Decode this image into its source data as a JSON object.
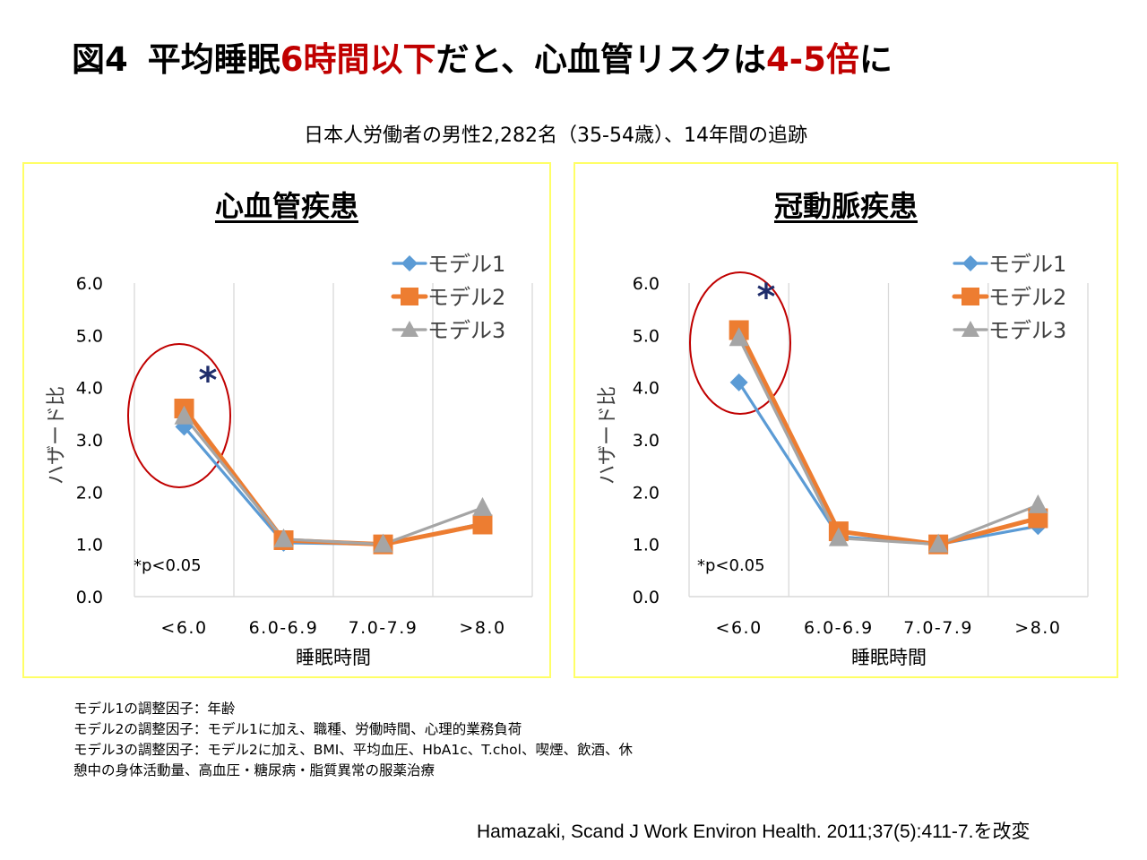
{
  "title": {
    "prefix": "図4",
    "part1": "平均睡眠",
    "part2_red": "6時間以下",
    "part3": "だと、心血管リスクは",
    "part4_red": "4-5倍",
    "part5": "に"
  },
  "subtitle": "日本人労働者の男性2,282名（35-54歳）、14年間の追跡",
  "colors": {
    "model1": "#5b9bd5",
    "model2": "#ed7d31",
    "model3": "#a5a5a5",
    "highlight_red": "#c00000",
    "asterisk": "#1f2d6b",
    "panel_border": "#ffff66"
  },
  "chart_data": [
    {
      "type": "line",
      "title": "心血管疾患",
      "xlabel": "睡眠時間",
      "ylabel": "ハザード比",
      "categories": [
        "<6.0",
        "6.0-6.9",
        "7.0-7.9",
        ">8.0"
      ],
      "ylim": [
        0,
        6
      ],
      "yticks": [
        "0.0",
        "1.0",
        "2.0",
        "3.0",
        "4.0",
        "5.0",
        "6.0"
      ],
      "grid": "vertical",
      "legend": "top-right",
      "series": [
        {
          "name": "モデル1",
          "marker": "diamond",
          "values": [
            3.25,
            1.03,
            1.0,
            1.4
          ]
        },
        {
          "name": "モデル2",
          "marker": "square",
          "values": [
            3.6,
            1.08,
            1.0,
            1.38
          ]
        },
        {
          "name": "モデル3",
          "marker": "triangle",
          "values": [
            3.45,
            1.1,
            1.0,
            1.7
          ]
        }
      ],
      "annotations": {
        "significance_mark": "*",
        "significance_category": "<6.0",
        "footnote": "*p<0.05"
      }
    },
    {
      "type": "line",
      "title": "冠動脈疾患",
      "xlabel": "睡眠時間",
      "ylabel": "ハザード比",
      "categories": [
        "<6.0",
        "6.0-6.9",
        "7.0-7.9",
        ">8.0"
      ],
      "ylim": [
        0,
        6
      ],
      "yticks": [
        "0.0",
        "1.0",
        "2.0",
        "3.0",
        "4.0",
        "5.0",
        "6.0"
      ],
      "grid": "vertical",
      "legend": "top-right",
      "series": [
        {
          "name": "モデル1",
          "marker": "diamond",
          "values": [
            4.1,
            1.15,
            1.0,
            1.35
          ]
        },
        {
          "name": "モデル2",
          "marker": "square",
          "values": [
            5.1,
            1.25,
            1.0,
            1.5
          ]
        },
        {
          "name": "モデル3",
          "marker": "triangle",
          "values": [
            4.95,
            1.12,
            1.0,
            1.75
          ]
        }
      ],
      "annotations": {
        "significance_mark": "*",
        "significance_category": "<6.0",
        "footnote": "*p<0.05"
      }
    }
  ],
  "notes": [
    "モデル1の調整因子：年齢",
    "モデル2の調整因子：モデル1に加え、職種、労働時間、心理的業務負荷",
    "モデル3の調整因子：モデル2に加え、BMI、平均血圧、HbA1c、T.chol、喫煙、飲酒、休",
    "憩中の身体活動量、高血圧・糖尿病・脂質異常の服薬治療"
  ],
  "citation": "Hamazaki, Scand J Work Environ Health. 2011;37(5):411-7.を改変"
}
